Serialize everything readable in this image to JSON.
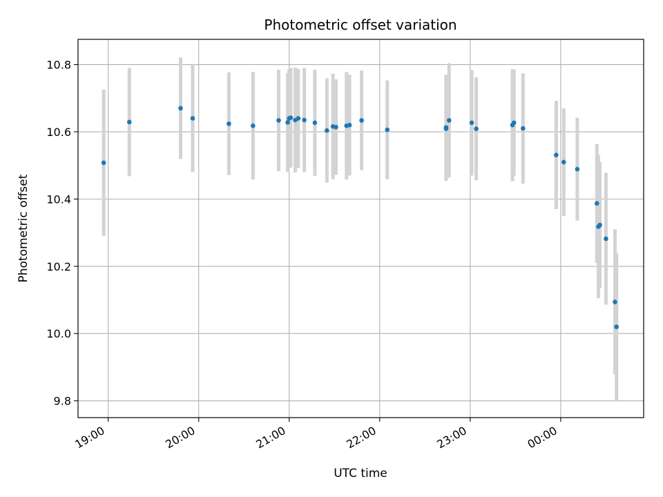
{
  "chart_data": {
    "type": "scatter",
    "title": "Photometric offset variation",
    "xlabel": "UTC time",
    "ylabel": "Photometric offset",
    "xlim": [
      "18:40",
      "00:55"
    ],
    "ylim": [
      9.75,
      10.875
    ],
    "grid": true,
    "x_ticks": [
      "19:00",
      "20:00",
      "21:00",
      "22:00",
      "23:00",
      "00:00"
    ],
    "y_ticks": [
      "9.8",
      "10.0",
      "10.2",
      "10.4",
      "10.6",
      "10.8"
    ],
    "colors": {
      "points": "#1f77b4",
      "errorbars": "#d3d3d3",
      "grid": "#b0b0b0"
    },
    "series": [
      {
        "points": [
          {
            "time": "18:57",
            "value": 10.508,
            "err": 0.218
          },
          {
            "time": "19:14",
            "value": 10.629,
            "err": 0.161
          },
          {
            "time": "19:48",
            "value": 10.67,
            "err": 0.151
          },
          {
            "time": "19:56",
            "value": 10.64,
            "err": 0.16
          },
          {
            "time": "20:20",
            "value": 10.624,
            "err": 0.153
          },
          {
            "time": "20:36",
            "value": 10.618,
            "err": 0.16
          },
          {
            "time": "20:53",
            "value": 10.634,
            "err": 0.151
          },
          {
            "time": "20:59",
            "value": 10.628,
            "err": 0.147
          },
          {
            "time": "21:00",
            "value": 10.64,
            "err": 0.147
          },
          {
            "time": "21:01",
            "value": 10.642,
            "err": 0.148
          },
          {
            "time": "21:04",
            "value": 10.635,
            "err": 0.156
          },
          {
            "time": "21:06",
            "value": 10.64,
            "err": 0.147
          },
          {
            "time": "21:10",
            "value": 10.635,
            "err": 0.155
          },
          {
            "time": "21:17",
            "value": 10.627,
            "err": 0.158
          },
          {
            "time": "21:25",
            "value": 10.604,
            "err": 0.155
          },
          {
            "time": "21:29",
            "value": 10.616,
            "err": 0.157
          },
          {
            "time": "21:31",
            "value": 10.614,
            "err": 0.142
          },
          {
            "time": "21:38",
            "value": 10.618,
            "err": 0.16
          },
          {
            "time": "21:40",
            "value": 10.62,
            "err": 0.15
          },
          {
            "time": "21:48",
            "value": 10.634,
            "err": 0.148
          },
          {
            "time": "22:05",
            "value": 10.606,
            "err": 0.147
          },
          {
            "time": "22:44",
            "value": 10.613,
            "err": 0.157
          },
          {
            "time": "22:44",
            "value": 10.609,
            "err": 0.155
          },
          {
            "time": "22:46",
            "value": 10.634,
            "err": 0.17
          },
          {
            "time": "23:01",
            "value": 10.627,
            "err": 0.157
          },
          {
            "time": "23:04",
            "value": 10.609,
            "err": 0.153
          },
          {
            "time": "23:28",
            "value": 10.62,
            "err": 0.167
          },
          {
            "time": "23:29",
            "value": 10.627,
            "err": 0.158
          },
          {
            "time": "23:35",
            "value": 10.61,
            "err": 0.164
          },
          {
            "time": "23:57",
            "value": 10.531,
            "err": 0.161
          },
          {
            "time": "00:02",
            "value": 10.51,
            "err": 0.16
          },
          {
            "time": "00:11",
            "value": 10.489,
            "err": 0.153
          },
          {
            "time": "00:24",
            "value": 10.387,
            "err": 0.177
          },
          {
            "time": "00:25",
            "value": 10.318,
            "err": 0.213
          },
          {
            "time": "00:26",
            "value": 10.323,
            "err": 0.187
          },
          {
            "time": "00:30",
            "value": 10.282,
            "err": 0.196
          },
          {
            "time": "00:36",
            "value": 10.094,
            "err": 0.216
          },
          {
            "time": "00:37",
            "value": 10.02,
            "err": 0.22
          }
        ]
      }
    ]
  }
}
